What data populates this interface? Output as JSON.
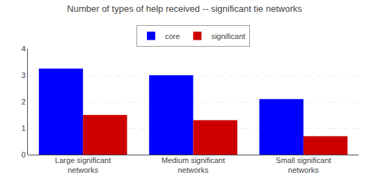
{
  "chart_data": {
    "type": "bar",
    "title": "Number of types of help received -- significant tie networks",
    "categories": [
      "Large significant\nnetworks",
      "Medium significant\nnetworks",
      "Small significant\nnetworks"
    ],
    "series": [
      {
        "name": "core",
        "values": [
          3.25,
          3.0,
          2.1
        ],
        "color": "#0000FF"
      },
      {
        "name": "significant",
        "values": [
          1.5,
          1.3,
          0.7
        ],
        "color": "#CC0000"
      }
    ],
    "ylim": [
      0,
      4
    ],
    "yticks": [
      0,
      1,
      2,
      3,
      4
    ],
    "grid": true,
    "legend": "top"
  }
}
